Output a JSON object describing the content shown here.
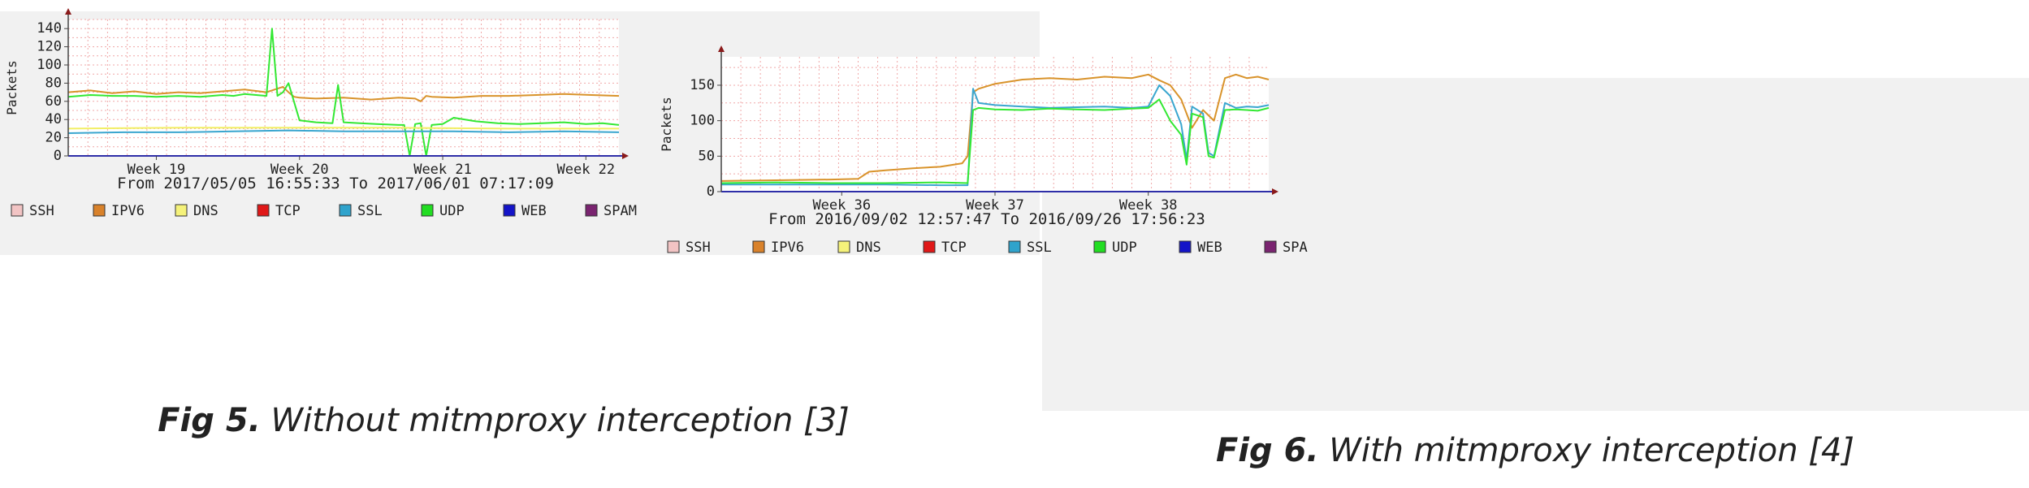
{
  "chart_data": [
    {
      "type": "line",
      "ylabel": "Packets",
      "yticks": [
        0,
        20,
        40,
        60,
        80,
        100,
        120,
        140
      ],
      "ylim": [
        0,
        150
      ],
      "x_ticks": [
        "Week 19",
        "Week 20",
        "Week 21",
        "Week 22"
      ],
      "xlim": [
        0,
        100
      ],
      "tick_positions": [
        16,
        42,
        68,
        94
      ],
      "range_label": "From 2017/05/05 16:55:33 To 2017/06/01 07:17:09",
      "legend": [
        "SSH",
        "IPV6",
        "DNS",
        "TCP",
        "SSL",
        "UDP",
        "WEB",
        "SPAM"
      ],
      "grid": true,
      "series": [
        {
          "name": "IPV6",
          "color": "#d9932b",
          "x": [
            0,
            4,
            8,
            12,
            16,
            20,
            24,
            28,
            32,
            36,
            39,
            40,
            41,
            42,
            45,
            50,
            55,
            60,
            63,
            64,
            65,
            66,
            70,
            75,
            80,
            85,
            90,
            95,
            100
          ],
          "values": [
            70,
            72,
            69,
            71,
            68,
            70,
            69,
            71,
            73,
            70,
            76,
            70,
            65,
            64,
            63,
            64,
            62,
            64,
            63,
            60,
            66,
            65,
            64,
            66,
            66,
            67,
            68,
            67,
            66
          ]
        },
        {
          "name": "UDP",
          "color": "#33e833",
          "x": [
            0,
            4,
            8,
            12,
            16,
            20,
            24,
            28,
            30,
            32,
            36,
            37,
            38,
            39,
            40,
            42,
            45,
            48,
            49,
            50,
            53,
            56,
            60,
            61,
            62,
            63,
            64,
            65,
            66,
            68,
            70,
            74,
            78,
            82,
            86,
            90,
            94,
            97,
            100
          ],
          "values": [
            65,
            67,
            66,
            66,
            65,
            66,
            65,
            67,
            66,
            68,
            66,
            140,
            66,
            70,
            80,
            39,
            37,
            36,
            78,
            37,
            36,
            35,
            34,
            34,
            0,
            35,
            36,
            0,
            34,
            35,
            42,
            38,
            36,
            35,
            36,
            37,
            35,
            36,
            34
          ]
        },
        {
          "name": "SSL",
          "color": "#3aa6cf",
          "x": [
            0,
            10,
            20,
            30,
            40,
            50,
            60,
            70,
            80,
            90,
            100
          ],
          "values": [
            25,
            26,
            26,
            27,
            28,
            27,
            27,
            27,
            26,
            27,
            26
          ]
        },
        {
          "name": "DNS",
          "color": "#f2ef66",
          "x": [
            0,
            20,
            40,
            60,
            80,
            100
          ],
          "values": [
            30,
            31,
            31,
            31,
            30,
            30
          ]
        }
      ]
    },
    {
      "type": "line",
      "ylabel": "Packets",
      "yticks": [
        0,
        50,
        100,
        150
      ],
      "ylim": [
        0,
        190
      ],
      "x_ticks": [
        "Week 36",
        "Week 37",
        "Week 38"
      ],
      "xlim": [
        0,
        100
      ],
      "tick_positions": [
        22,
        50,
        78
      ],
      "range_label": "From 2016/09/02 12:57:47 To 2016/09/26 17:56:23",
      "legend": [
        "SSH",
        "IPV6",
        "DNS",
        "TCP",
        "SSL",
        "UDP",
        "WEB",
        "SPA"
      ],
      "grid": true,
      "series": [
        {
          "name": "IPV6",
          "color": "#d9932b",
          "x": [
            0,
            10,
            20,
            25,
            27,
            30,
            35,
            40,
            44,
            45,
            46,
            47,
            50,
            55,
            60,
            65,
            70,
            75,
            78,
            80,
            82,
            84,
            86,
            88,
            90,
            92,
            94,
            96,
            98,
            100
          ],
          "values": [
            15,
            16,
            17,
            18,
            28,
            30,
            33,
            35,
            40,
            50,
            140,
            145,
            152,
            158,
            160,
            158,
            162,
            160,
            165,
            157,
            150,
            130,
            90,
            115,
            100,
            160,
            165,
            160,
            162,
            158
          ]
        },
        {
          "name": "SSL",
          "color": "#3aa6cf",
          "x": [
            0,
            10,
            20,
            30,
            40,
            45,
            46,
            47,
            50,
            55,
            60,
            65,
            70,
            75,
            78,
            80,
            82,
            84,
            85,
            86,
            88,
            89,
            90,
            92,
            94,
            96,
            98,
            100
          ],
          "values": [
            10,
            10,
            10,
            10,
            9,
            9,
            145,
            125,
            122,
            120,
            118,
            119,
            120,
            118,
            120,
            150,
            135,
            95,
            45,
            120,
            110,
            55,
            50,
            125,
            118,
            120,
            119,
            122
          ]
        },
        {
          "name": "UDP",
          "color": "#33e833",
          "x": [
            0,
            10,
            20,
            30,
            40,
            45,
            46,
            47,
            50,
            55,
            60,
            65,
            70,
            75,
            78,
            80,
            82,
            84,
            85,
            86,
            88,
            89,
            90,
            92,
            94,
            96,
            98,
            100
          ],
          "values": [
            12,
            13,
            12,
            12,
            13,
            12,
            115,
            118,
            116,
            115,
            117,
            116,
            115,
            117,
            118,
            130,
            100,
            80,
            38,
            110,
            105,
            50,
            48,
            115,
            116,
            115,
            114,
            118
          ]
        }
      ]
    }
  ],
  "legend_colors": {
    "SSH": "#f2c4c4",
    "IPV6": "#d9822b",
    "DNS": "#f5f27a",
    "TCP": "#e01818",
    "SSL": "#2fa3cc",
    "UDP": "#22dd22",
    "WEB": "#1414c8",
    "SPAM": "#7a2470",
    "SPA": "#7a2470"
  },
  "captions": [
    {
      "label": "Fig 5.",
      "text": " Without mitmproxy interception [3]"
    },
    {
      "label": "Fig 6.",
      "text": " With mitmproxy interception [4]"
    }
  ]
}
